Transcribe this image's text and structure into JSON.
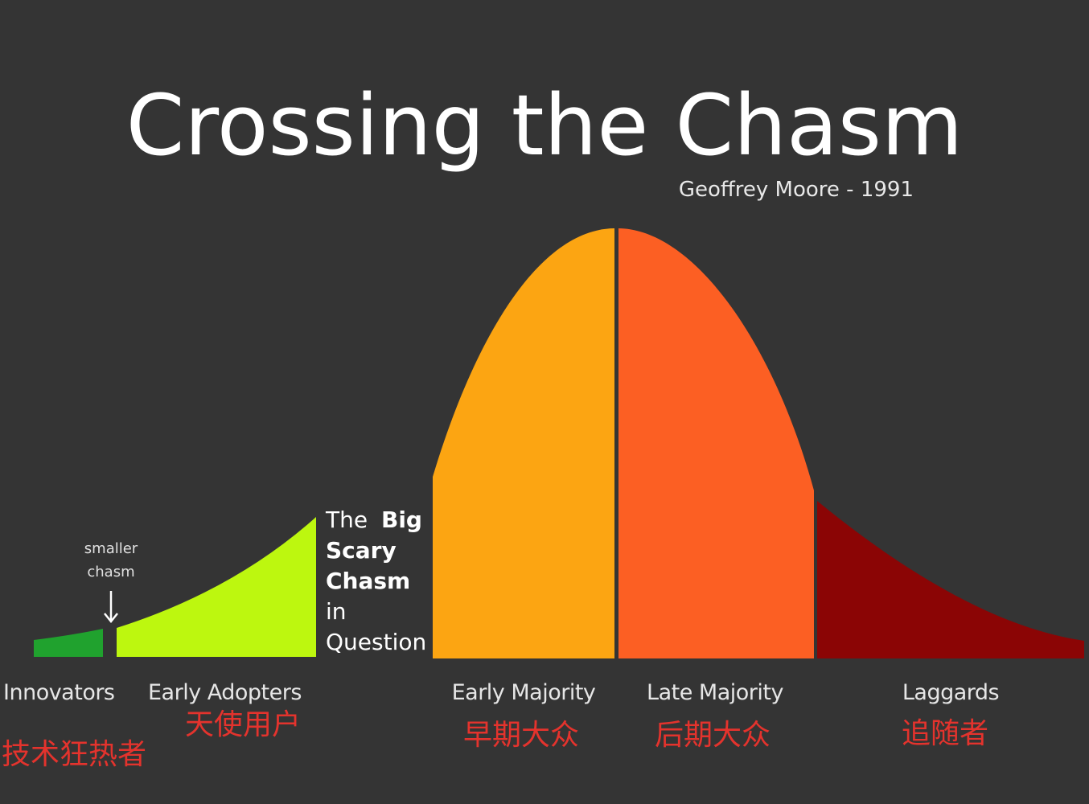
{
  "title": "Crossing the Chasm",
  "subtitle": "Geoffrey Moore - 1991",
  "smaller_chasm": {
    "line1": "smaller",
    "line2": "chasm"
  },
  "big_chasm": {
    "line1_regular": "The",
    "line1_bold": "Big",
    "line2": "Scary",
    "line3": "Chasm",
    "line4": "in",
    "line5": "Question"
  },
  "segments": [
    {
      "name": "Innovators",
      "cn": "技术狂热者",
      "color": "#20a22e"
    },
    {
      "name": "Early Adopters",
      "cn": "天使用户",
      "color": "#bdf70f"
    },
    {
      "name": "Early Majority",
      "cn": "早期大众",
      "color": "#fca512"
    },
    {
      "name": "Late Majority",
      "cn": "后期大众",
      "color": "#fc5f23"
    },
    {
      "name": "Laggards",
      "cn": "追随者",
      "color": "#8b0505"
    }
  ],
  "colors": {
    "background": "#343434",
    "annotation": "#e4332d",
    "title": "#ffffff"
  }
}
